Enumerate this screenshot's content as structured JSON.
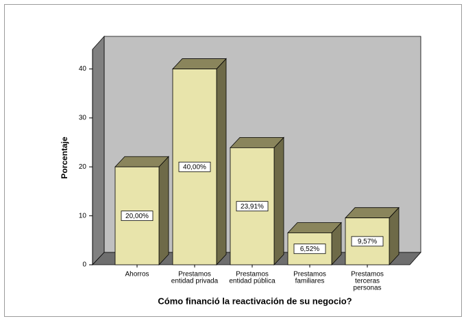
{
  "chart_data": {
    "type": "bar3d",
    "x_label": "Cómo financió la reactivación de su negocio?",
    "y_label": "Porcentaje",
    "categories": [
      [
        "Ahorros"
      ],
      [
        "Prestamos",
        "entidad privada"
      ],
      [
        "Prestamos",
        "entidad pública"
      ],
      [
        "Prestamos",
        "familiares"
      ],
      [
        "Prestamos",
        "terceras",
        "personas"
      ]
    ],
    "values": [
      20.0,
      40.0,
      23.91,
      6.52,
      9.57
    ],
    "value_labels": [
      "20,00%",
      "40,00%",
      "23,91%",
      "6,52%",
      "9,57%"
    ],
    "color": "#e8e4ab",
    "ylim": [
      0,
      44
    ],
    "yticks": [
      0,
      10,
      20,
      30,
      40
    ],
    "grid": false
  }
}
